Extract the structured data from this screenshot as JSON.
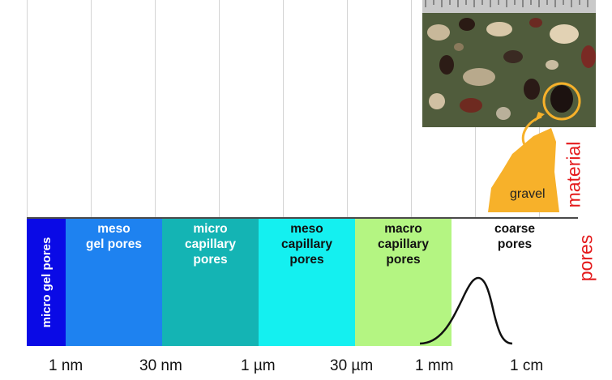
{
  "pore_segments": [
    {
      "label": "micro gel pores",
      "color": "#0a0ae6",
      "text_color": "#ffffff",
      "vertical": true
    },
    {
      "label": "meso\ngel pores",
      "color": "#1e82f0",
      "text_color": "#ffffff"
    },
    {
      "label": "micro\ncapillary\npores",
      "color": "#14b4b4",
      "text_color": "#ffffff"
    },
    {
      "label": "meso\ncapillary\npores",
      "color": "#14f0f0",
      "text_color": "#111111"
    },
    {
      "label": "macro\ncapillary\npores",
      "color": "#b4f582",
      "text_color": "#111111"
    },
    {
      "label": "coarse\npores",
      "color": "#ffffff",
      "text_color": "#111111"
    }
  ],
  "scale_labels": [
    "1 nm",
    "30 nm",
    "1 µm",
    "30 µm",
    "1 mm",
    "1 cm"
  ],
  "material_label": "material",
  "pores_label": "pores",
  "gravel_label": "gravel",
  "colors": {
    "gravel": "#f7b12a",
    "side_label": "#e41a1c",
    "circle": "#f7b12a"
  }
}
